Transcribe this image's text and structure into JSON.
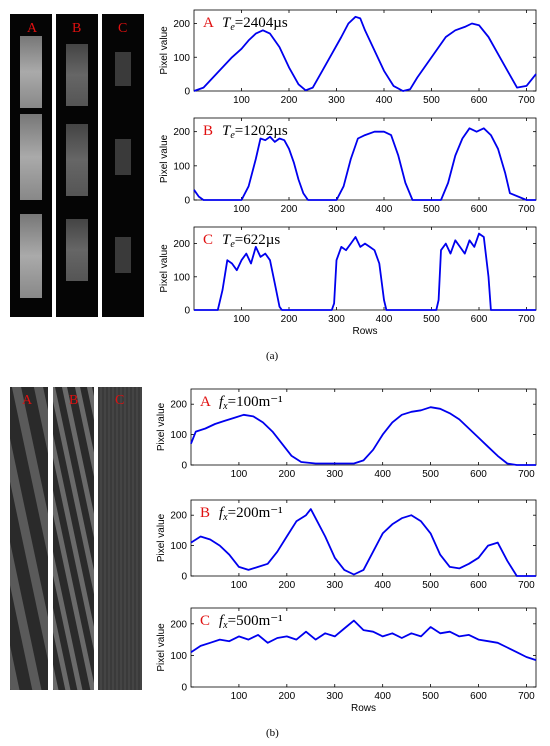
{
  "panel_a": {
    "caption": "(a)",
    "image_labels": [
      "A",
      "B",
      "C"
    ]
  },
  "panel_b": {
    "caption": "(b)",
    "image_labels": [
      "A",
      "B",
      "C"
    ]
  },
  "colors": {
    "line": "#0000ee",
    "label_red": "#e01010",
    "axis": "#000000"
  },
  "chart_data": [
    {
      "type": "line",
      "id": "a1",
      "tag": "A",
      "ann_main": "T",
      "ann_sub": "e",
      "ann_rest": "=2404µs",
      "xlim": [
        0,
        720
      ],
      "ylim": [
        0,
        240
      ],
      "xticks": [
        100,
        200,
        300,
        400,
        500,
        600,
        700
      ],
      "yticks": [
        0,
        100,
        200
      ],
      "ylabel": "Pixel value",
      "xlabel": "",
      "x": [
        0,
        20,
        40,
        60,
        80,
        100,
        115,
        130,
        145,
        160,
        180,
        200,
        220,
        235,
        250,
        270,
        290,
        310,
        325,
        340,
        350,
        360,
        380,
        400,
        420,
        440,
        455,
        470,
        490,
        510,
        530,
        550,
        570,
        585,
        600,
        620,
        640,
        660,
        680,
        700,
        720
      ],
      "y": [
        0,
        10,
        40,
        70,
        100,
        125,
        150,
        170,
        180,
        170,
        130,
        70,
        20,
        2,
        10,
        60,
        110,
        160,
        200,
        220,
        215,
        180,
        120,
        60,
        15,
        0,
        5,
        40,
        80,
        120,
        160,
        180,
        190,
        200,
        195,
        160,
        110,
        60,
        10,
        15,
        50
      ]
    },
    {
      "type": "line",
      "id": "a2",
      "tag": "B",
      "ann_main": "T",
      "ann_sub": "e",
      "ann_rest": "=1202µs",
      "xlim": [
        0,
        720
      ],
      "ylim": [
        0,
        240
      ],
      "xticks": [
        100,
        200,
        300,
        400,
        500,
        600,
        700
      ],
      "yticks": [
        0,
        100,
        200
      ],
      "ylabel": "Pixel value",
      "xlabel": "",
      "x": [
        0,
        10,
        20,
        100,
        115,
        130,
        140,
        150,
        160,
        170,
        180,
        190,
        200,
        210,
        220,
        230,
        240,
        300,
        315,
        330,
        345,
        360,
        380,
        400,
        415,
        430,
        445,
        460,
        520,
        535,
        550,
        565,
        580,
        595,
        610,
        625,
        640,
        655,
        665,
        700,
        720
      ],
      "y": [
        30,
        10,
        0,
        0,
        40,
        120,
        180,
        175,
        185,
        170,
        180,
        175,
        150,
        110,
        60,
        20,
        0,
        0,
        40,
        120,
        180,
        190,
        200,
        200,
        190,
        130,
        50,
        0,
        0,
        50,
        130,
        180,
        210,
        200,
        210,
        190,
        150,
        80,
        20,
        0,
        0
      ]
    },
    {
      "type": "line",
      "id": "a3",
      "tag": "C",
      "ann_main": "T",
      "ann_sub": "e",
      "ann_rest": "=622µs",
      "xlim": [
        0,
        720
      ],
      "ylim": [
        0,
        250
      ],
      "xticks": [
        100,
        200,
        300,
        400,
        500,
        600,
        700
      ],
      "yticks": [
        0,
        100,
        200
      ],
      "ylabel": "Pixel value",
      "xlabel": "Rows",
      "x": [
        0,
        50,
        60,
        70,
        80,
        90,
        100,
        110,
        120,
        130,
        140,
        150,
        160,
        170,
        180,
        185,
        290,
        295,
        300,
        310,
        320,
        330,
        340,
        350,
        360,
        370,
        380,
        390,
        400,
        405,
        510,
        515,
        520,
        530,
        540,
        550,
        560,
        570,
        580,
        590,
        600,
        610,
        620,
        625,
        720
      ],
      "y": [
        0,
        0,
        60,
        150,
        140,
        120,
        150,
        170,
        140,
        190,
        160,
        170,
        150,
        80,
        10,
        0,
        0,
        20,
        150,
        190,
        180,
        200,
        220,
        190,
        200,
        190,
        180,
        140,
        30,
        0,
        0,
        30,
        180,
        200,
        170,
        210,
        190,
        170,
        210,
        190,
        230,
        220,
        100,
        0,
        0
      ]
    },
    {
      "type": "line",
      "id": "b1",
      "tag": "A",
      "ann_main": "f",
      "ann_sub": "x",
      "ann_rest": "=100m⁻¹",
      "xlim": [
        0,
        720
      ],
      "ylim": [
        0,
        250
      ],
      "xticks": [
        100,
        200,
        300,
        400,
        500,
        600,
        700
      ],
      "yticks": [
        0,
        100,
        200
      ],
      "ylabel": "Pixel value",
      "xlabel": "",
      "x": [
        0,
        10,
        30,
        50,
        70,
        90,
        110,
        130,
        150,
        170,
        190,
        210,
        230,
        260,
        300,
        340,
        360,
        380,
        400,
        420,
        440,
        460,
        480,
        500,
        520,
        540,
        560,
        580,
        600,
        620,
        640,
        660,
        680,
        700,
        720
      ],
      "y": [
        70,
        110,
        120,
        135,
        145,
        155,
        165,
        160,
        140,
        110,
        70,
        30,
        10,
        5,
        5,
        5,
        15,
        50,
        100,
        140,
        165,
        175,
        180,
        190,
        185,
        170,
        150,
        120,
        90,
        60,
        30,
        5,
        0,
        0,
        0
      ]
    },
    {
      "type": "line",
      "id": "b2",
      "tag": "B",
      "ann_main": "f",
      "ann_sub": "x",
      "ann_rest": "=200m⁻¹",
      "xlim": [
        0,
        720
      ],
      "ylim": [
        0,
        250
      ],
      "xticks": [
        100,
        200,
        300,
        400,
        500,
        600,
        700
      ],
      "yticks": [
        0,
        100,
        200
      ],
      "ylabel": "Pixel value",
      "xlabel": "",
      "x": [
        0,
        20,
        40,
        60,
        80,
        100,
        120,
        140,
        160,
        180,
        200,
        220,
        240,
        250,
        260,
        280,
        300,
        320,
        340,
        360,
        380,
        400,
        420,
        440,
        460,
        480,
        500,
        520,
        540,
        560,
        580,
        600,
        620,
        640,
        660,
        680,
        700,
        720
      ],
      "y": [
        110,
        130,
        120,
        100,
        70,
        30,
        20,
        30,
        40,
        80,
        130,
        180,
        200,
        220,
        190,
        130,
        60,
        20,
        5,
        20,
        80,
        140,
        170,
        190,
        200,
        180,
        140,
        70,
        30,
        25,
        40,
        60,
        100,
        110,
        50,
        0,
        0,
        0
      ]
    },
    {
      "type": "line",
      "id": "b3",
      "tag": "C",
      "ann_main": "f",
      "ann_sub": "x",
      "ann_rest": "=500m⁻¹",
      "xlim": [
        0,
        720
      ],
      "ylim": [
        0,
        250
      ],
      "xticks": [
        100,
        200,
        300,
        400,
        500,
        600,
        700
      ],
      "yticks": [
        0,
        100,
        200
      ],
      "ylabel": "Pixel value",
      "xlabel": "Rows",
      "x": [
        0,
        20,
        40,
        60,
        80,
        100,
        120,
        140,
        160,
        180,
        200,
        220,
        240,
        260,
        280,
        300,
        320,
        340,
        360,
        380,
        400,
        420,
        440,
        460,
        480,
        500,
        520,
        540,
        560,
        580,
        600,
        620,
        640,
        660,
        680,
        700,
        720
      ],
      "y": [
        110,
        130,
        140,
        150,
        145,
        160,
        150,
        165,
        140,
        155,
        160,
        150,
        175,
        150,
        170,
        160,
        185,
        210,
        180,
        175,
        160,
        170,
        155,
        170,
        160,
        190,
        170,
        175,
        160,
        165,
        150,
        145,
        140,
        125,
        110,
        95,
        85
      ]
    }
  ]
}
